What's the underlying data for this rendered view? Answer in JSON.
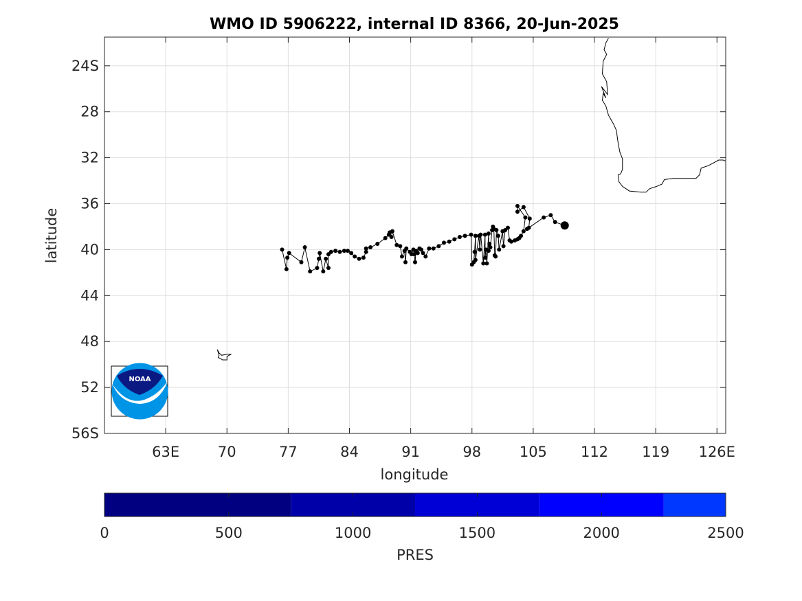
{
  "figure": {
    "title": "WMO ID 5906222, internal ID 8366, 20-Jun-2025"
  },
  "chart_data": {
    "type": "scatter",
    "title": "WMO ID 5906222, internal ID 8366, 20-Jun-2025",
    "xlabel": "longitude",
    "ylabel": "latitude",
    "xlim": [
      56,
      127
    ],
    "ylim": [
      -56,
      -21.5
    ],
    "grid": true,
    "x_ticks": [
      {
        "value": 63,
        "label": "63E"
      },
      {
        "value": 70,
        "label": "70"
      },
      {
        "value": 77,
        "label": "77"
      },
      {
        "value": 84,
        "label": "84"
      },
      {
        "value": 91,
        "label": "91"
      },
      {
        "value": 98,
        "label": "98"
      },
      {
        "value": 105,
        "label": "105"
      },
      {
        "value": 112,
        "label": "112"
      },
      {
        "value": 119,
        "label": "119"
      },
      {
        "value": 126,
        "label": "126E"
      }
    ],
    "y_ticks": [
      {
        "value": -24,
        "label": "24S"
      },
      {
        "value": -28,
        "label": "28"
      },
      {
        "value": -32,
        "label": "32"
      },
      {
        "value": -36,
        "label": "36"
      },
      {
        "value": -40,
        "label": "40"
      },
      {
        "value": -44,
        "label": "44"
      },
      {
        "value": -48,
        "label": "48"
      },
      {
        "value": -52,
        "label": "52"
      },
      {
        "value": -56,
        "label": "56S"
      }
    ],
    "trajectory": [
      [
        76.3,
        -40.0
      ],
      [
        76.8,
        -41.7
      ],
      [
        76.9,
        -40.7
      ],
      [
        77.1,
        -40.3
      ],
      [
        78.5,
        -41.1
      ],
      [
        78.9,
        -39.8
      ],
      [
        79.5,
        -41.9
      ],
      [
        80.3,
        -41.6
      ],
      [
        80.5,
        -40.8
      ],
      [
        80.6,
        -40.3
      ],
      [
        81.0,
        -41.9
      ],
      [
        81.3,
        -40.8
      ],
      [
        81.6,
        -41.6
      ],
      [
        81.6,
        -40.4
      ],
      [
        81.9,
        -40.2
      ],
      [
        82.4,
        -40.1
      ],
      [
        82.9,
        -40.2
      ],
      [
        83.4,
        -40.1
      ],
      [
        83.8,
        -40.1
      ],
      [
        84.2,
        -40.3
      ],
      [
        84.6,
        -40.6
      ],
      [
        85.1,
        -40.8
      ],
      [
        85.6,
        -40.7
      ],
      [
        85.9,
        -40.2
      ],
      [
        85.9,
        -39.9
      ],
      [
        86.4,
        -39.8
      ],
      [
        87.2,
        -39.5
      ],
      [
        88.1,
        -39.0
      ],
      [
        88.5,
        -38.7
      ],
      [
        88.6,
        -38.5
      ],
      [
        88.8,
        -38.9
      ],
      [
        88.9,
        -38.4
      ],
      [
        89.4,
        -39.6
      ],
      [
        89.8,
        -39.7
      ],
      [
        90.0,
        -40.6
      ],
      [
        90.3,
        -40.1
      ],
      [
        90.4,
        -41.1
      ],
      [
        90.5,
        -39.9
      ],
      [
        90.9,
        -40.2
      ],
      [
        91.1,
        -40.4
      ],
      [
        91.3,
        -40.0
      ],
      [
        91.4,
        -40.4
      ],
      [
        91.5,
        -41.1
      ],
      [
        91.6,
        -40.1
      ],
      [
        91.8,
        -40.3
      ],
      [
        92.0,
        -39.9
      ],
      [
        92.2,
        -40.0
      ],
      [
        92.4,
        -40.3
      ],
      [
        92.7,
        -40.6
      ],
      [
        93.1,
        -39.9
      ],
      [
        93.6,
        -39.9
      ],
      [
        94.2,
        -39.7
      ],
      [
        94.8,
        -39.4
      ],
      [
        95.4,
        -39.3
      ],
      [
        96.0,
        -39.1
      ],
      [
        96.6,
        -38.9
      ],
      [
        97.2,
        -38.8
      ],
      [
        97.9,
        -38.7
      ],
      [
        98.0,
        -41.3
      ],
      [
        98.2,
        -41.1
      ],
      [
        98.3,
        -40.2
      ],
      [
        98.4,
        -38.8
      ],
      [
        98.4,
        -40.9
      ],
      [
        98.8,
        -38.8
      ],
      [
        98.9,
        -40.0
      ],
      [
        99.0,
        -38.7
      ],
      [
        99.3,
        -41.2
      ],
      [
        99.5,
        -38.7
      ],
      [
        99.5,
        -40.7
      ],
      [
        99.6,
        -40.0
      ],
      [
        99.7,
        -41.2
      ],
      [
        99.9,
        -38.6
      ],
      [
        99.9,
        -40.1
      ],
      [
        100.0,
        -39.5
      ],
      [
        100.1,
        -39.8
      ],
      [
        100.3,
        -38.3
      ],
      [
        100.4,
        -38.0
      ],
      [
        100.5,
        -38.2
      ],
      [
        100.6,
        -40.5
      ],
      [
        100.7,
        -40.6
      ],
      [
        100.8,
        -38.3
      ],
      [
        101.0,
        -38.8
      ],
      [
        101.1,
        -40.0
      ],
      [
        101.5,
        -38.4
      ],
      [
        101.6,
        -39.7
      ],
      [
        101.8,
        -38.3
      ],
      [
        102.1,
        -38.1
      ],
      [
        102.3,
        -39.2
      ],
      [
        102.5,
        -39.3
      ],
      [
        102.9,
        -39.2
      ],
      [
        103.2,
        -39.1
      ],
      [
        103.4,
        -39.0
      ],
      [
        103.6,
        -38.8
      ],
      [
        103.9,
        -38.4
      ],
      [
        104.1,
        -37.2
      ],
      [
        103.2,
        -36.2
      ],
      [
        103.2,
        -36.7
      ],
      [
        103.9,
        -36.3
      ],
      [
        104.6,
        -37.3
      ],
      [
        104.5,
        -38.1
      ],
      [
        104.3,
        -38.2
      ],
      [
        106.2,
        -37.2
      ],
      [
        107.0,
        -37.0
      ],
      [
        107.5,
        -37.6
      ],
      [
        108.6,
        -37.9
      ]
    ],
    "last_position": [
      108.6,
      -37.9
    ],
    "colorbar": {
      "label": "PRES",
      "range": [
        0,
        2500
      ],
      "ticks": [
        "0",
        "500",
        "1000",
        "1500",
        "2000",
        "2500"
      ],
      "bands": [
        {
          "from": 0,
          "to": 750,
          "color": "#000080"
        },
        {
          "from": 750,
          "to": 1250,
          "color": "#0000a8"
        },
        {
          "from": 1250,
          "to": 1750,
          "color": "#0000d6"
        },
        {
          "from": 1750,
          "to": 2250,
          "color": "#0000ff"
        },
        {
          "from": 2250,
          "to": 2500,
          "color": "#0038ff"
        }
      ]
    },
    "coastlines": [
      {
        "name": "australia-west-coast",
        "points": [
          [
            113.6,
            -21.6
          ],
          [
            113.3,
            -22.0
          ],
          [
            113.1,
            -22.6
          ],
          [
            113.4,
            -23.0
          ],
          [
            113.0,
            -23.6
          ],
          [
            112.9,
            -24.7
          ],
          [
            113.4,
            -25.4
          ],
          [
            113.5,
            -26.5
          ],
          [
            112.8,
            -25.8
          ],
          [
            113.3,
            -26.8
          ],
          [
            113.0,
            -26.4
          ],
          [
            112.9,
            -27.0
          ],
          [
            113.3,
            -27.5
          ],
          [
            113.6,
            -28.3
          ],
          [
            114.2,
            -29.1
          ],
          [
            114.5,
            -29.6
          ],
          [
            114.7,
            -30.7
          ],
          [
            114.9,
            -31.5
          ],
          [
            115.2,
            -32.1
          ],
          [
            115.2,
            -32.6
          ],
          [
            115.2,
            -33.0
          ],
          [
            115.0,
            -33.4
          ],
          [
            114.7,
            -33.5
          ],
          [
            114.8,
            -34.1
          ],
          [
            115.2,
            -34.5
          ],
          [
            116.0,
            -34.9
          ],
          [
            117.3,
            -35.0
          ],
          [
            117.9,
            -35.0
          ],
          [
            118.3,
            -34.7
          ],
          [
            119.1,
            -34.5
          ],
          [
            119.7,
            -34.3
          ],
          [
            120.0,
            -33.9
          ],
          [
            121.0,
            -33.8
          ],
          [
            123.0,
            -33.8
          ],
          [
            123.6,
            -33.8
          ],
          [
            124.0,
            -33.5
          ],
          [
            124.2,
            -32.9
          ],
          [
            125.0,
            -32.7
          ],
          [
            126.2,
            -32.2
          ],
          [
            126.7,
            -32.2
          ],
          [
            127.0,
            -32.3
          ]
        ]
      },
      {
        "name": "kerguelen-islands",
        "points": [
          [
            68.9,
            -48.7
          ],
          [
            69.1,
            -49.0
          ],
          [
            69.4,
            -49.2
          ],
          [
            70.0,
            -49.1
          ],
          [
            70.5,
            -49.1
          ],
          [
            70.0,
            -49.3
          ],
          [
            70.0,
            -49.6
          ],
          [
            69.5,
            -49.6
          ],
          [
            69.3,
            -49.5
          ],
          [
            69.0,
            -49.4
          ],
          [
            69.1,
            -49.2
          ],
          [
            68.9,
            -48.7
          ]
        ]
      }
    ]
  },
  "logo": {
    "text": "NOAA",
    "colors": {
      "top": "#0b1a82",
      "bottom": "#0094e6",
      "bird": "#ffffff"
    }
  },
  "colors": {
    "marker": "#000000",
    "axis": "#262626",
    "grid": "#dfdfdf"
  }
}
